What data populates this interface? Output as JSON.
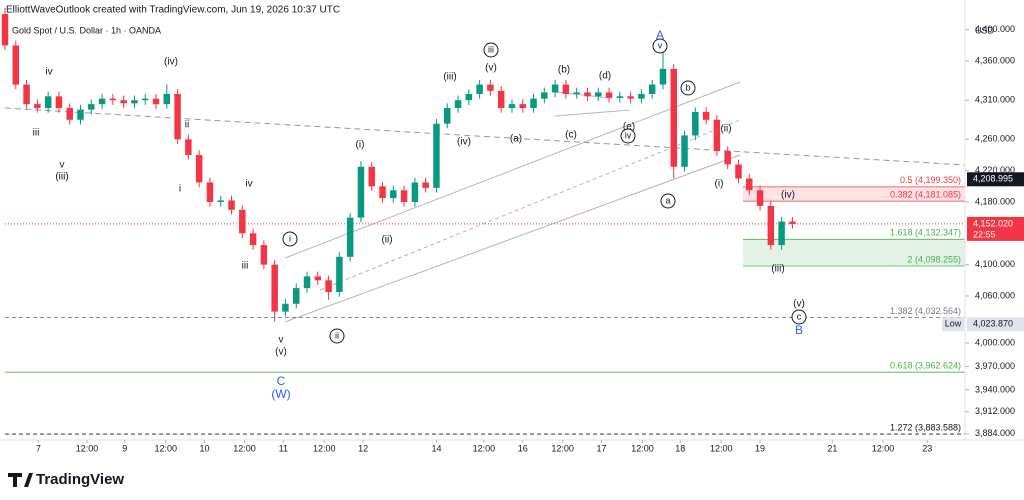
{
  "header": {
    "credit": "ElliottWaveOutlook created with TradingView.com, Jun 19, 2026 10:37 UTC",
    "symbol": "Gold Spot / U.S. Dollar · 1h · OANDA",
    "currency": "USD"
  },
  "footer": {
    "brand": "TradingView"
  },
  "chart_data": {
    "type": "candlestick",
    "up_color": "#089981",
    "down_color": "#f23645",
    "open": [
      4420,
      4380,
      4330,
      4305,
      4300,
      4315,
      4300,
      4285,
      4298,
      4305,
      4312,
      4310,
      4306,
      4310,
      4312,
      4305,
      4318,
      4260,
      4240,
      4205,
      4180,
      4182,
      4170,
      4140,
      4125,
      4100,
      4040,
      4050,
      4070,
      4085,
      4080,
      4065,
      4110,
      4160,
      4225,
      4200,
      4185,
      4195,
      4180,
      4205,
      4198,
      4280,
      4300,
      4310,
      4318,
      4330,
      4322,
      4300,
      4305,
      4300,
      4312,
      4320,
      4330,
      4318,
      4320,
      4315,
      4320,
      4313,
      4315,
      4312,
      4318,
      4330,
      4350,
      4225,
      4265,
      4295,
      4285,
      4245,
      4228,
      4210,
      4195,
      4175,
      4125,
      4155
    ],
    "high": [
      4428,
      4386,
      4336,
      4311,
      4321,
      4321,
      4306,
      4304,
      4311,
      4318,
      4318,
      4316,
      4316,
      4318,
      4318,
      4330,
      4324,
      4266,
      4246,
      4211,
      4188,
      4188,
      4176,
      4146,
      4131,
      4106,
      4056,
      4076,
      4091,
      4091,
      4086,
      4116,
      4166,
      4232,
      4231,
      4206,
      4201,
      4201,
      4211,
      4211,
      4286,
      4306,
      4316,
      4324,
      4336,
      4336,
      4328,
      4311,
      4311,
      4318,
      4326,
      4336,
      4336,
      4326,
      4326,
      4326,
      4326,
      4321,
      4321,
      4324,
      4336,
      4382,
      4356,
      4271,
      4301,
      4301,
      4291,
      4251,
      4234,
      4216,
      4201,
      4181,
      4161,
      4161
    ],
    "low": [
      4374,
      4324,
      4299,
      4294,
      4294,
      4294,
      4279,
      4279,
      4292,
      4299,
      4304,
      4300,
      4300,
      4304,
      4299,
      4299,
      4254,
      4234,
      4199,
      4174,
      4174,
      4164,
      4134,
      4119,
      4094,
      4027,
      4034,
      4044,
      4064,
      4074,
      4055,
      4059,
      4104,
      4154,
      4194,
      4179,
      4179,
      4174,
      4174,
      4192,
      4192,
      4274,
      4294,
      4304,
      4312,
      4316,
      4294,
      4294,
      4294,
      4294,
      4306,
      4314,
      4312,
      4312,
      4309,
      4309,
      4307,
      4307,
      4306,
      4306,
      4312,
      4324,
      4210,
      4219,
      4259,
      4279,
      4239,
      4222,
      4204,
      4189,
      4169,
      4119,
      4119,
      4146
    ],
    "close": [
      4380,
      4330,
      4305,
      4300,
      4315,
      4300,
      4285,
      4298,
      4305,
      4312,
      4310,
      4306,
      4310,
      4312,
      4305,
      4318,
      4260,
      4240,
      4205,
      4180,
      4182,
      4170,
      4140,
      4125,
      4100,
      4040,
      4050,
      4070,
      4085,
      4080,
      4065,
      4110,
      4160,
      4225,
      4200,
      4185,
      4195,
      4180,
      4205,
      4198,
      4280,
      4300,
      4310,
      4318,
      4330,
      4322,
      4300,
      4305,
      4300,
      4312,
      4320,
      4330,
      4318,
      4320,
      4315,
      4320,
      4313,
      4315,
      4312,
      4318,
      4330,
      4350,
      4225,
      4265,
      4295,
      4285,
      4245,
      4228,
      4210,
      4195,
      4175,
      4125,
      4155,
      4152.02
    ],
    "xlim": [
      0,
      89
    ],
    "xticks": [
      {
        "value": 3.1,
        "label": "7"
      },
      {
        "value": 7.6,
        "label": "12:00"
      },
      {
        "value": 11.1,
        "label": "9"
      },
      {
        "value": 14.9,
        "label": "12:00"
      },
      {
        "value": 18.5,
        "label": "10"
      },
      {
        "value": 22.2,
        "label": "12:00"
      },
      {
        "value": 25.8,
        "label": "11"
      },
      {
        "value": 29.6,
        "label": "12:00"
      },
      {
        "value": 33.2,
        "label": "12"
      },
      {
        "value": 40,
        "label": "14"
      },
      {
        "value": 44.4,
        "label": "12:00"
      },
      {
        "value": 48,
        "label": "16"
      },
      {
        "value": 51.7,
        "label": "12:00"
      },
      {
        "value": 55.3,
        "label": "17"
      },
      {
        "value": 59.1,
        "label": "12:00"
      },
      {
        "value": 62.6,
        "label": "18"
      },
      {
        "value": 66.4,
        "label": "12:00"
      },
      {
        "value": 70,
        "label": "19"
      },
      {
        "value": 76.7,
        "label": "21"
      },
      {
        "value": 81.4,
        "label": "12:00"
      },
      {
        "value": 85.5,
        "label": "23"
      }
    ],
    "ylim": [
      3876,
      4438
    ],
    "yticks": [
      {
        "value": 4400,
        "label": "4,400.000"
      },
      {
        "value": 4360,
        "label": "4,360.000"
      },
      {
        "value": 4310,
        "label": "4,310.000"
      },
      {
        "value": 4260,
        "label": "4,260.000"
      },
      {
        "value": 4220,
        "label": "4,220.000"
      },
      {
        "value": 4180,
        "label": "4,180.000"
      },
      {
        "value": 4100,
        "label": "4,100.000"
      },
      {
        "value": 4060,
        "label": "4,060.000"
      },
      {
        "value": 4000,
        "label": "4,000.000"
      },
      {
        "value": 3970,
        "label": "3,970.000"
      },
      {
        "value": 3940,
        "label": "3,940.000"
      },
      {
        "value": 3912,
        "label": "3,912.000"
      },
      {
        "value": 3884,
        "label": "3,884.000"
      }
    ],
    "fib_levels": [
      {
        "value": 4199.35,
        "label": "0.5 (4,199.350)",
        "color": "#f23645"
      },
      {
        "value": 4181.085,
        "label": "0.382 (4,181.085)",
        "color": "#f23645"
      },
      {
        "value": 4132.347,
        "label": "1.618 (4,132.347)",
        "color": "#4caf50"
      },
      {
        "value": 4098.255,
        "label": "2 (4,098.255)",
        "color": "#4caf50"
      },
      {
        "value": 4032.564,
        "label": "1.382 (4,032.564)",
        "color": "#787b86"
      },
      {
        "value": 3962.624,
        "label": "0.618 (3,962.624)",
        "color": "#4caf50"
      },
      {
        "value": 3883.588,
        "label": "1.272 (3,883.588)",
        "color": "#131722"
      }
    ],
    "price_labels": [
      {
        "value": 4208.995,
        "label": "4,208.995"
      },
      {
        "value": 4152.02,
        "label": "4,152.020",
        "countdown": "22:55"
      },
      {
        "value": 4023.87,
        "label": "4,023.870",
        "name": "Low"
      }
    ],
    "annotations": [
      "iv",
      "iii",
      "v",
      "(iii)",
      "(iv)",
      "ii",
      "i",
      "iv",
      "iii",
      "v",
      "(v)",
      "C",
      "(W)",
      "i",
      "(i)",
      "(ii)",
      "ii",
      "(iii)",
      "iii",
      "(v)",
      "(iv)",
      "(a)",
      "(b)",
      "(c)",
      "(d)",
      "(e)",
      "iv",
      "A",
      "v",
      "b",
      "a",
      "(ii)",
      "(i)",
      "(iv)",
      "(iii)",
      "(v)",
      "c",
      "B"
    ]
  }
}
